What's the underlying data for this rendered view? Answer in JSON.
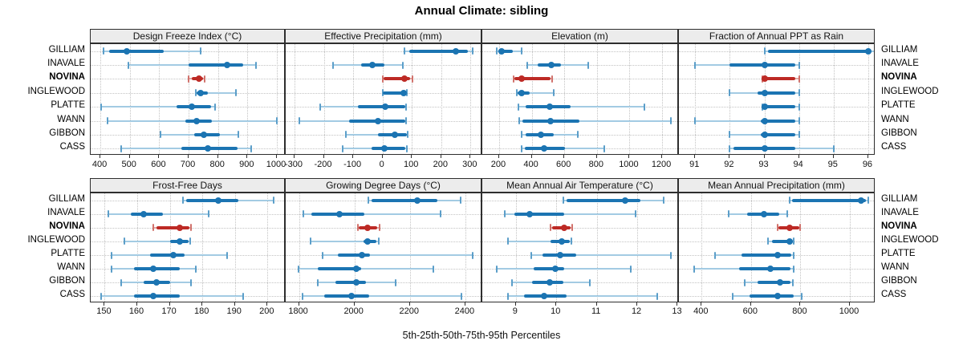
{
  "title": "Annual Climate: sibling",
  "caption": "5th-25th-50th-75th-95th Percentiles",
  "chart_data": {
    "type": "scatter",
    "subtype": "dot-and-whisker percentile intervals (5th, 25th, 50th, 75th, 95th)",
    "title": "Annual Climate: sibling",
    "xlabel": "5th-25th-50th-75th-95th Percentiles",
    "legend_position": "none",
    "grid": "dotted",
    "sites": [
      "GILLIAM",
      "INAVALE",
      "NOVINA",
      "INGLEWOOD",
      "PLATTE",
      "WANN",
      "GIBBON",
      "CASS"
    ],
    "highlighted": "NOVINA",
    "colors": {
      "normal": "#1b74b2",
      "normal_mid": "#5b9ec9",
      "normal_light": "#a3cbe3",
      "highlight": "#bd2a25",
      "highlight_mid": "#d1726c",
      "highlight_light": "#e2a6a1"
    },
    "panels": [
      {
        "title": "Design Freeze Index (°C)",
        "xlim": [
          367,
          1030
        ],
        "ticks": [
          400,
          500,
          600,
          700,
          800,
          900,
          1000
        ],
        "values": {
          "GILLIAM": [
            410,
            430,
            490,
            615,
            740
          ],
          "INAVALE": [
            495,
            700,
            830,
            885,
            930
          ],
          "NOVINA": [
            700,
            710,
            734,
            748,
            755
          ],
          "INGLEWOOD": [
            724,
            728,
            740,
            766,
            860
          ],
          "PLATTE": [
            403,
            660,
            710,
            775,
            790
          ],
          "WANN": [
            425,
            690,
            726,
            780,
            1000
          ],
          "GIBBON": [
            605,
            720,
            752,
            807,
            870
          ],
          "CASS": [
            470,
            675,
            764,
            865,
            913
          ]
        }
      },
      {
        "title": "Effective Precipitation (mm)",
        "xlim": [
          -330,
          340
        ],
        "ticks": [
          -300,
          -200,
          -100,
          0,
          100,
          200,
          300
        ],
        "values": {
          "GILLIAM": [
            74,
            90,
            250,
            290,
            308
          ],
          "INAVALE": [
            -168,
            -72,
            -34,
            7,
            69
          ],
          "NOVINA": [
            0,
            4,
            74,
            95,
            101
          ],
          "INGLEWOOD": [
            0,
            2,
            73,
            80,
            82
          ],
          "PLATTE": [
            -213,
            -84,
            9,
            77,
            80
          ],
          "WANN": [
            -284,
            -114,
            -16,
            77,
            80
          ],
          "GIBBON": [
            -125,
            -16,
            42,
            82,
            85
          ],
          "CASS": [
            -136,
            -38,
            7,
            78,
            83
          ]
        }
      },
      {
        "title": "Elevation (m)",
        "xlim": [
          97,
          1303
        ],
        "ticks": [
          200,
          400,
          600,
          800,
          1000,
          1200
        ],
        "values": {
          "GILLIAM": [
            185,
            195,
            215,
            285,
            340
          ],
          "INAVALE": [
            375,
            435,
            520,
            580,
            745
          ],
          "NOVINA": [
            290,
            295,
            340,
            515,
            525
          ],
          "INGLEWOOD": [
            310,
            315,
            340,
            385,
            535
          ],
          "PLATTE": [
            320,
            365,
            510,
            640,
            1090
          ],
          "WANN": [
            325,
            345,
            515,
            695,
            1255
          ],
          "GIBBON": [
            340,
            365,
            455,
            535,
            685
          ],
          "CASS": [
            340,
            360,
            475,
            605,
            845
          ]
        }
      },
      {
        "title": "Fraction of Annual PPT as Rain",
        "xlim": [
          90.53,
          96.21
        ],
        "ticks": [
          91,
          92,
          93,
          94,
          95,
          96
        ],
        "values": {
          "GILLIAM": [
            93.0,
            93.1,
            96.0,
            96.1,
            96.2
          ],
          "INAVALE": [
            91.0,
            92.0,
            93.0,
            93.9,
            94.0
          ],
          "NOVINA": [
            92.95,
            93.0,
            93.0,
            93.9,
            94.0
          ],
          "INGLEWOOD": [
            92.0,
            92.8,
            93.0,
            93.9,
            94.0
          ],
          "PLATTE": [
            92.95,
            93.0,
            93.0,
            93.9,
            94.0
          ],
          "WANN": [
            91.0,
            92.9,
            93.0,
            93.9,
            94.0
          ],
          "GIBBON": [
            92.0,
            92.9,
            93.0,
            93.9,
            94.0
          ],
          "CASS": [
            92.0,
            92.1,
            93.0,
            93.9,
            95.0
          ]
        }
      },
      {
        "title": "Frost-Free Days",
        "xlim": [
          145.7,
          205.6
        ],
        "ticks": [
          150,
          160,
          170,
          180,
          190,
          200
        ],
        "values": {
          "GILLIAM": [
            174,
            175,
            185,
            191,
            202
          ],
          "INAVALE": [
            151,
            158,
            162,
            168,
            182
          ],
          "NOVINA": [
            165,
            166,
            173,
            176,
            176.5
          ],
          "INGLEWOOD": [
            156,
            170,
            173,
            175.8,
            176.3
          ],
          "PLATTE": [
            152,
            164,
            171,
            174.5,
            187.5
          ],
          "WANN": [
            152,
            159,
            165,
            173,
            178
          ],
          "GIBBON": [
            155,
            162,
            166,
            170,
            176.5
          ],
          "CASS": [
            149,
            159,
            165,
            173,
            192.5
          ]
        }
      },
      {
        "title": "Growing Degree Days (°C)",
        "xlim": [
          1752,
          2461
        ],
        "ticks": [
          1800,
          2000,
          2200,
          2400
        ],
        "values": {
          "GILLIAM": [
            2050,
            2062,
            2228,
            2300,
            2384
          ],
          "INAVALE": [
            1817,
            1845,
            1945,
            2035,
            2310
          ],
          "NOVINA": [
            2012,
            2016,
            2046,
            2082,
            2092
          ],
          "INGLEWOOD": [
            1843,
            2034,
            2046,
            2080,
            2087
          ],
          "PLATTE": [
            1886,
            1940,
            2027,
            2055,
            2425
          ],
          "WANN": [
            1798,
            1868,
            2008,
            2025,
            2285
          ],
          "GIBBON": [
            1868,
            1930,
            2008,
            2040,
            2148
          ],
          "CASS": [
            1814,
            1892,
            1988,
            2053,
            2385
          ]
        }
      },
      {
        "title": "Mean Annual Air Temperature (°C)",
        "xlim": [
          8.17,
          13.03
        ],
        "ticks": [
          9,
          10,
          11,
          12,
          13
        ],
        "values": {
          "GILLIAM": [
            10.17,
            10.25,
            11.7,
            12.08,
            12.65
          ],
          "INAVALE": [
            8.72,
            8.97,
            9.35,
            10.2,
            11.96
          ],
          "NOVINA": [
            9.86,
            9.9,
            10.19,
            10.35,
            10.4
          ],
          "INGLEWOOD": [
            8.8,
            9.86,
            10.14,
            10.33,
            10.37
          ],
          "PLATTE": [
            9.38,
            9.66,
            10.09,
            10.49,
            12.83
          ],
          "WANN": [
            8.52,
            9.43,
            9.98,
            10.19,
            11.84
          ],
          "GIBBON": [
            8.91,
            9.4,
            9.83,
            10.17,
            10.82
          ],
          "CASS": [
            8.8,
            9.2,
            9.69,
            10.25,
            12.5
          ]
        }
      },
      {
        "title": "Mean Annual Precipitation (mm)",
        "xlim": [
          308,
          1104
        ],
        "ticks": [
          400,
          600,
          800,
          1000
        ],
        "values": {
          "GILLIAM": [
            757,
            765,
            1045,
            1065,
            1076
          ],
          "INAVALE": [
            510,
            585,
            652,
            714,
            746
          ],
          "NOVINA": [
            706,
            710,
            755,
            795,
            800
          ],
          "INGLEWOOD": [
            668,
            686,
            755,
            768,
            771
          ],
          "PLATTE": [
            455,
            562,
            706,
            762,
            773
          ],
          "WANN": [
            370,
            551,
            679,
            760,
            771
          ],
          "GIBBON": [
            576,
            625,
            717,
            760,
            770
          ],
          "CASS": [
            525,
            595,
            706,
            773,
            805
          ]
        }
      }
    ]
  }
}
